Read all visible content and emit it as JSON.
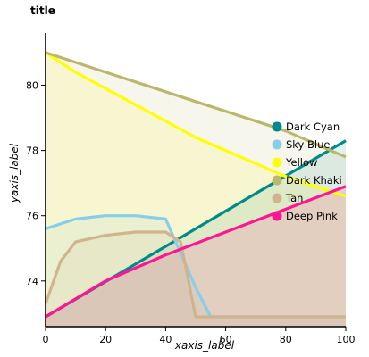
{
  "chart_data": {
    "type": "area",
    "title": "title",
    "xlabel": "xaxis_label",
    "ylabel": "yaxis_label",
    "xlim": [
      0,
      100
    ],
    "ylim": [
      72.6,
      81.6
    ],
    "x_ticks": [
      0,
      20,
      40,
      60,
      80,
      100
    ],
    "y_ticks": [
      74,
      76,
      78,
      80
    ],
    "legend_position": "right",
    "grid": false,
    "series": [
      {
        "name": "Dark Cyan",
        "color": "#008B8B",
        "x": [
          0,
          100
        ],
        "y": [
          72.9,
          78.3
        ]
      },
      {
        "name": "Sky Blue",
        "color": "#87CEEB",
        "x": [
          0,
          10,
          20,
          30,
          40,
          50,
          55,
          60,
          70,
          80,
          90,
          100
        ],
        "y": [
          75.6,
          75.9,
          76.0,
          76.0,
          75.9,
          73.8,
          72.9,
          72.9,
          72.9,
          72.9,
          72.9,
          72.9
        ]
      },
      {
        "name": "Yellow",
        "color": "#FFFF00",
        "x": [
          0,
          10,
          20,
          30,
          40,
          50,
          60,
          70,
          80,
          90,
          100
        ],
        "y": [
          81.0,
          80.4,
          79.9,
          79.4,
          78.9,
          78.4,
          78.0,
          77.6,
          77.2,
          76.9,
          76.6
        ]
      },
      {
        "name": "Dark Khaki",
        "color": "#BDB76B",
        "x": [
          0,
          10,
          20,
          30,
          40,
          50,
          60,
          70,
          80,
          90,
          100
        ],
        "y": [
          81.0,
          80.7,
          80.4,
          80.1,
          79.8,
          79.5,
          79.2,
          78.9,
          78.6,
          78.2,
          77.8
        ]
      },
      {
        "name": "Tan",
        "color": "#D2B48C",
        "x": [
          0,
          5,
          10,
          20,
          30,
          40,
          45,
          50,
          60,
          70,
          80,
          90,
          100
        ],
        "y": [
          73.3,
          74.6,
          75.2,
          75.4,
          75.5,
          75.5,
          75.2,
          72.9,
          72.9,
          72.9,
          72.9,
          72.9,
          72.9
        ]
      },
      {
        "name": "Deep Pink",
        "color": "#FF1493",
        "x": [
          0,
          20,
          40,
          60,
          80,
          100
        ],
        "y": [
          72.9,
          74.0,
          74.8,
          75.5,
          76.2,
          76.9
        ]
      }
    ]
  }
}
